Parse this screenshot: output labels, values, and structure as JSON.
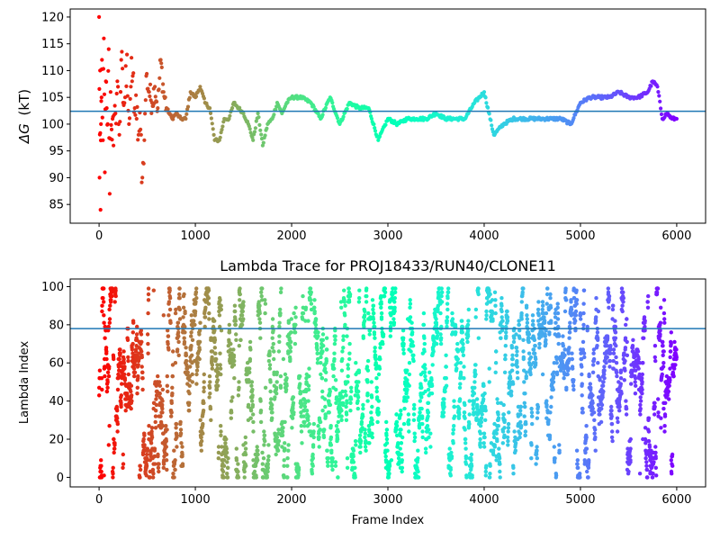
{
  "colormap": "rainbow",
  "mean_line_color": "#1f77b4",
  "chart_data": [
    {
      "type": "scatter",
      "title": "",
      "xlabel": "",
      "ylabel": "ΔG (kT)",
      "ylabel_symbol": "ΔG",
      "ylabel_unit": "(kT)",
      "xlim": [
        -300,
        6300
      ],
      "ylim": [
        81.5,
        121.5
      ],
      "xticks": [
        0,
        1000,
        2000,
        3000,
        4000,
        5000,
        6000
      ],
      "yticks": [
        85,
        90,
        95,
        100,
        105,
        110,
        115,
        120
      ],
      "hline": 102.4,
      "grid": false,
      "legend": "none",
      "color_by": "frame index (rainbow colormap, red at start to violet at end)",
      "series": [
        {
          "x": [
            0,
            5,
            10,
            15,
            20,
            25,
            30,
            40,
            50,
            60,
            70,
            80,
            90,
            100,
            110,
            120,
            130,
            140,
            150,
            170,
            190,
            210,
            230,
            250,
            270,
            290,
            310,
            330,
            350,
            370,
            390,
            410,
            430,
            450,
            470,
            490,
            520,
            550,
            580,
            610,
            640,
            670,
            700,
            730,
            760,
            800,
            850,
            900,
            950,
            1000,
            1050,
            1100,
            1150,
            1200,
            1250,
            1300,
            1350,
            1400,
            1450,
            1500,
            1550,
            1600,
            1650,
            1700,
            1750,
            1800,
            1850,
            1900,
            1950,
            2000,
            2100,
            2200,
            2300,
            2400,
            2500,
            2600,
            2700,
            2800,
            2900,
            3000,
            3100,
            3200,
            3300,
            3400,
            3500,
            3600,
            3700,
            3800,
            3900,
            4000,
            4100,
            4200,
            4300,
            4400,
            4500,
            4600,
            4700,
            4800,
            4900,
            5000,
            5100,
            5200,
            5300,
            5400,
            5500,
            5600,
            5700,
            5750,
            5800,
            5850,
            5900,
            5950,
            6000
          ],
          "y": [
            120,
            90,
            110,
            84,
            100,
            105,
            112,
            97,
            116,
            91,
            108,
            103,
            100,
            114,
            87,
            106,
            99,
            101,
            96,
            102,
            108,
            98,
            112,
            104,
            105,
            113,
            100,
            107,
            109,
            103,
            101,
            98,
            99,
            90,
            97,
            109,
            106,
            104,
            107,
            103,
            112,
            106,
            103,
            102,
            101,
            102,
            101,
            101,
            106,
            105,
            107,
            104,
            103,
            97,
            97,
            101,
            101,
            104,
            103,
            102,
            100,
            97,
            102,
            96,
            100,
            101,
            104,
            102,
            104,
            105,
            105,
            104,
            101,
            105,
            100,
            104,
            103,
            103,
            97,
            101,
            100,
            101,
            101,
            101,
            102,
            101,
            101,
            101,
            104,
            106,
            98,
            100,
            101,
            101,
            101,
            101,
            101,
            101,
            100,
            104,
            105,
            105,
            105,
            106,
            105,
            105,
            106,
            108,
            107,
            101,
            102,
            101,
            101
          ]
        }
      ]
    },
    {
      "type": "scatter",
      "title": "Lambda Trace for PROJ18433/RUN40/CLONE11",
      "xlabel": "Frame Index",
      "ylabel": "Lambda Index",
      "xlim": [
        -300,
        6300
      ],
      "ylim": [
        -5,
        104
      ],
      "xticks": [
        0,
        1000,
        2000,
        3000,
        4000,
        5000,
        6000
      ],
      "yticks": [
        0,
        20,
        40,
        60,
        80,
        100
      ],
      "hline": 78,
      "grid": false,
      "legend": "none",
      "color_by": "frame index (rainbow colormap, red at start to violet at end)",
      "frame_range": [
        0,
        6000
      ],
      "lambda_range": [
        0,
        99
      ]
    }
  ]
}
